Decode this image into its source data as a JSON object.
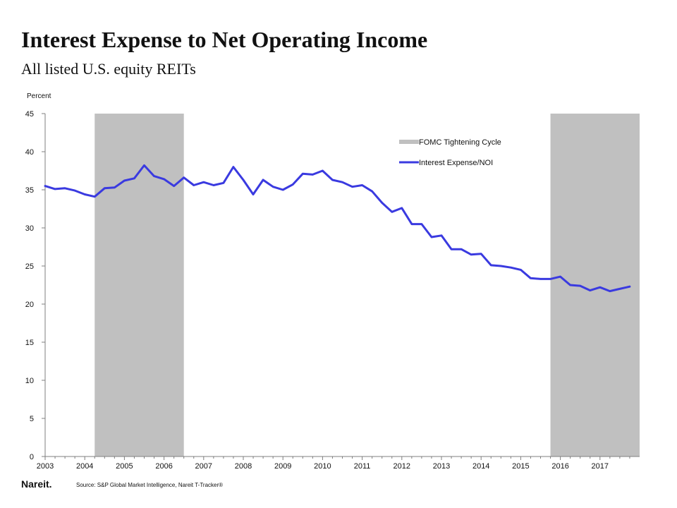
{
  "title": "Interest Expense to Net Operating Income",
  "subtitle": "All listed U.S. equity REITs",
  "source": "Source: S&P Global Market Intelligence, Nareit T-Tracker®",
  "logo_text": "Nareit.",
  "chart_data": {
    "type": "line",
    "ylabel": "Percent",
    "ylim": [
      0,
      45
    ],
    "yticks": [
      0,
      5,
      10,
      15,
      20,
      25,
      30,
      35,
      40,
      45
    ],
    "xlim": [
      2003,
      2018
    ],
    "xticks": [
      "2003",
      "2004",
      "2005",
      "2006",
      "2007",
      "2008",
      "2009",
      "2010",
      "2011",
      "2012",
      "2013",
      "2014",
      "2015",
      "2016",
      "2017"
    ],
    "legend_position": "top-right",
    "colors": {
      "line": "#3a3ae0",
      "shade": "#c0c0c0",
      "axis": "#7f7f7f"
    },
    "shaded_periods": {
      "name": "FOMC Tightening Cycle",
      "ranges": [
        [
          2004.25,
          2006.5
        ],
        [
          2015.75,
          2018
        ]
      ]
    },
    "series": [
      {
        "name": "Interest Expense/NOI",
        "x": [
          2003.0,
          2003.25,
          2003.5,
          2003.75,
          2004.0,
          2004.25,
          2004.5,
          2004.75,
          2005.0,
          2005.25,
          2005.5,
          2005.75,
          2006.0,
          2006.25,
          2006.5,
          2006.75,
          2007.0,
          2007.25,
          2007.5,
          2007.75,
          2008.0,
          2008.25,
          2008.5,
          2008.75,
          2009.0,
          2009.25,
          2009.5,
          2009.75,
          2010.0,
          2010.25,
          2010.5,
          2010.75,
          2011.0,
          2011.25,
          2011.5,
          2011.75,
          2012.0,
          2012.25,
          2012.5,
          2012.75,
          2013.0,
          2013.25,
          2013.5,
          2013.75,
          2014.0,
          2014.25,
          2014.5,
          2014.75,
          2015.0,
          2015.25,
          2015.5,
          2015.75,
          2016.0,
          2016.25,
          2016.5,
          2016.75,
          2017.0,
          2017.25,
          2017.5,
          2017.75
        ],
        "values": [
          35.5,
          35.1,
          35.2,
          34.9,
          34.4,
          34.1,
          35.2,
          35.3,
          36.2,
          36.5,
          38.2,
          36.8,
          36.4,
          35.5,
          36.6,
          35.6,
          36.0,
          35.6,
          35.9,
          38.0,
          36.3,
          34.4,
          36.3,
          35.4,
          35.0,
          35.7,
          37.1,
          37.0,
          37.5,
          36.3,
          36.0,
          35.4,
          35.6,
          34.8,
          33.3,
          32.1,
          32.6,
          30.5,
          30.5,
          28.8,
          29.0,
          27.2,
          27.2,
          26.5,
          26.6,
          25.1,
          25.0,
          24.8,
          24.5,
          23.4,
          23.3,
          23.3,
          23.6,
          22.5,
          22.4,
          21.8,
          22.2,
          21.7,
          22.0,
          22.3
        ]
      }
    ]
  }
}
